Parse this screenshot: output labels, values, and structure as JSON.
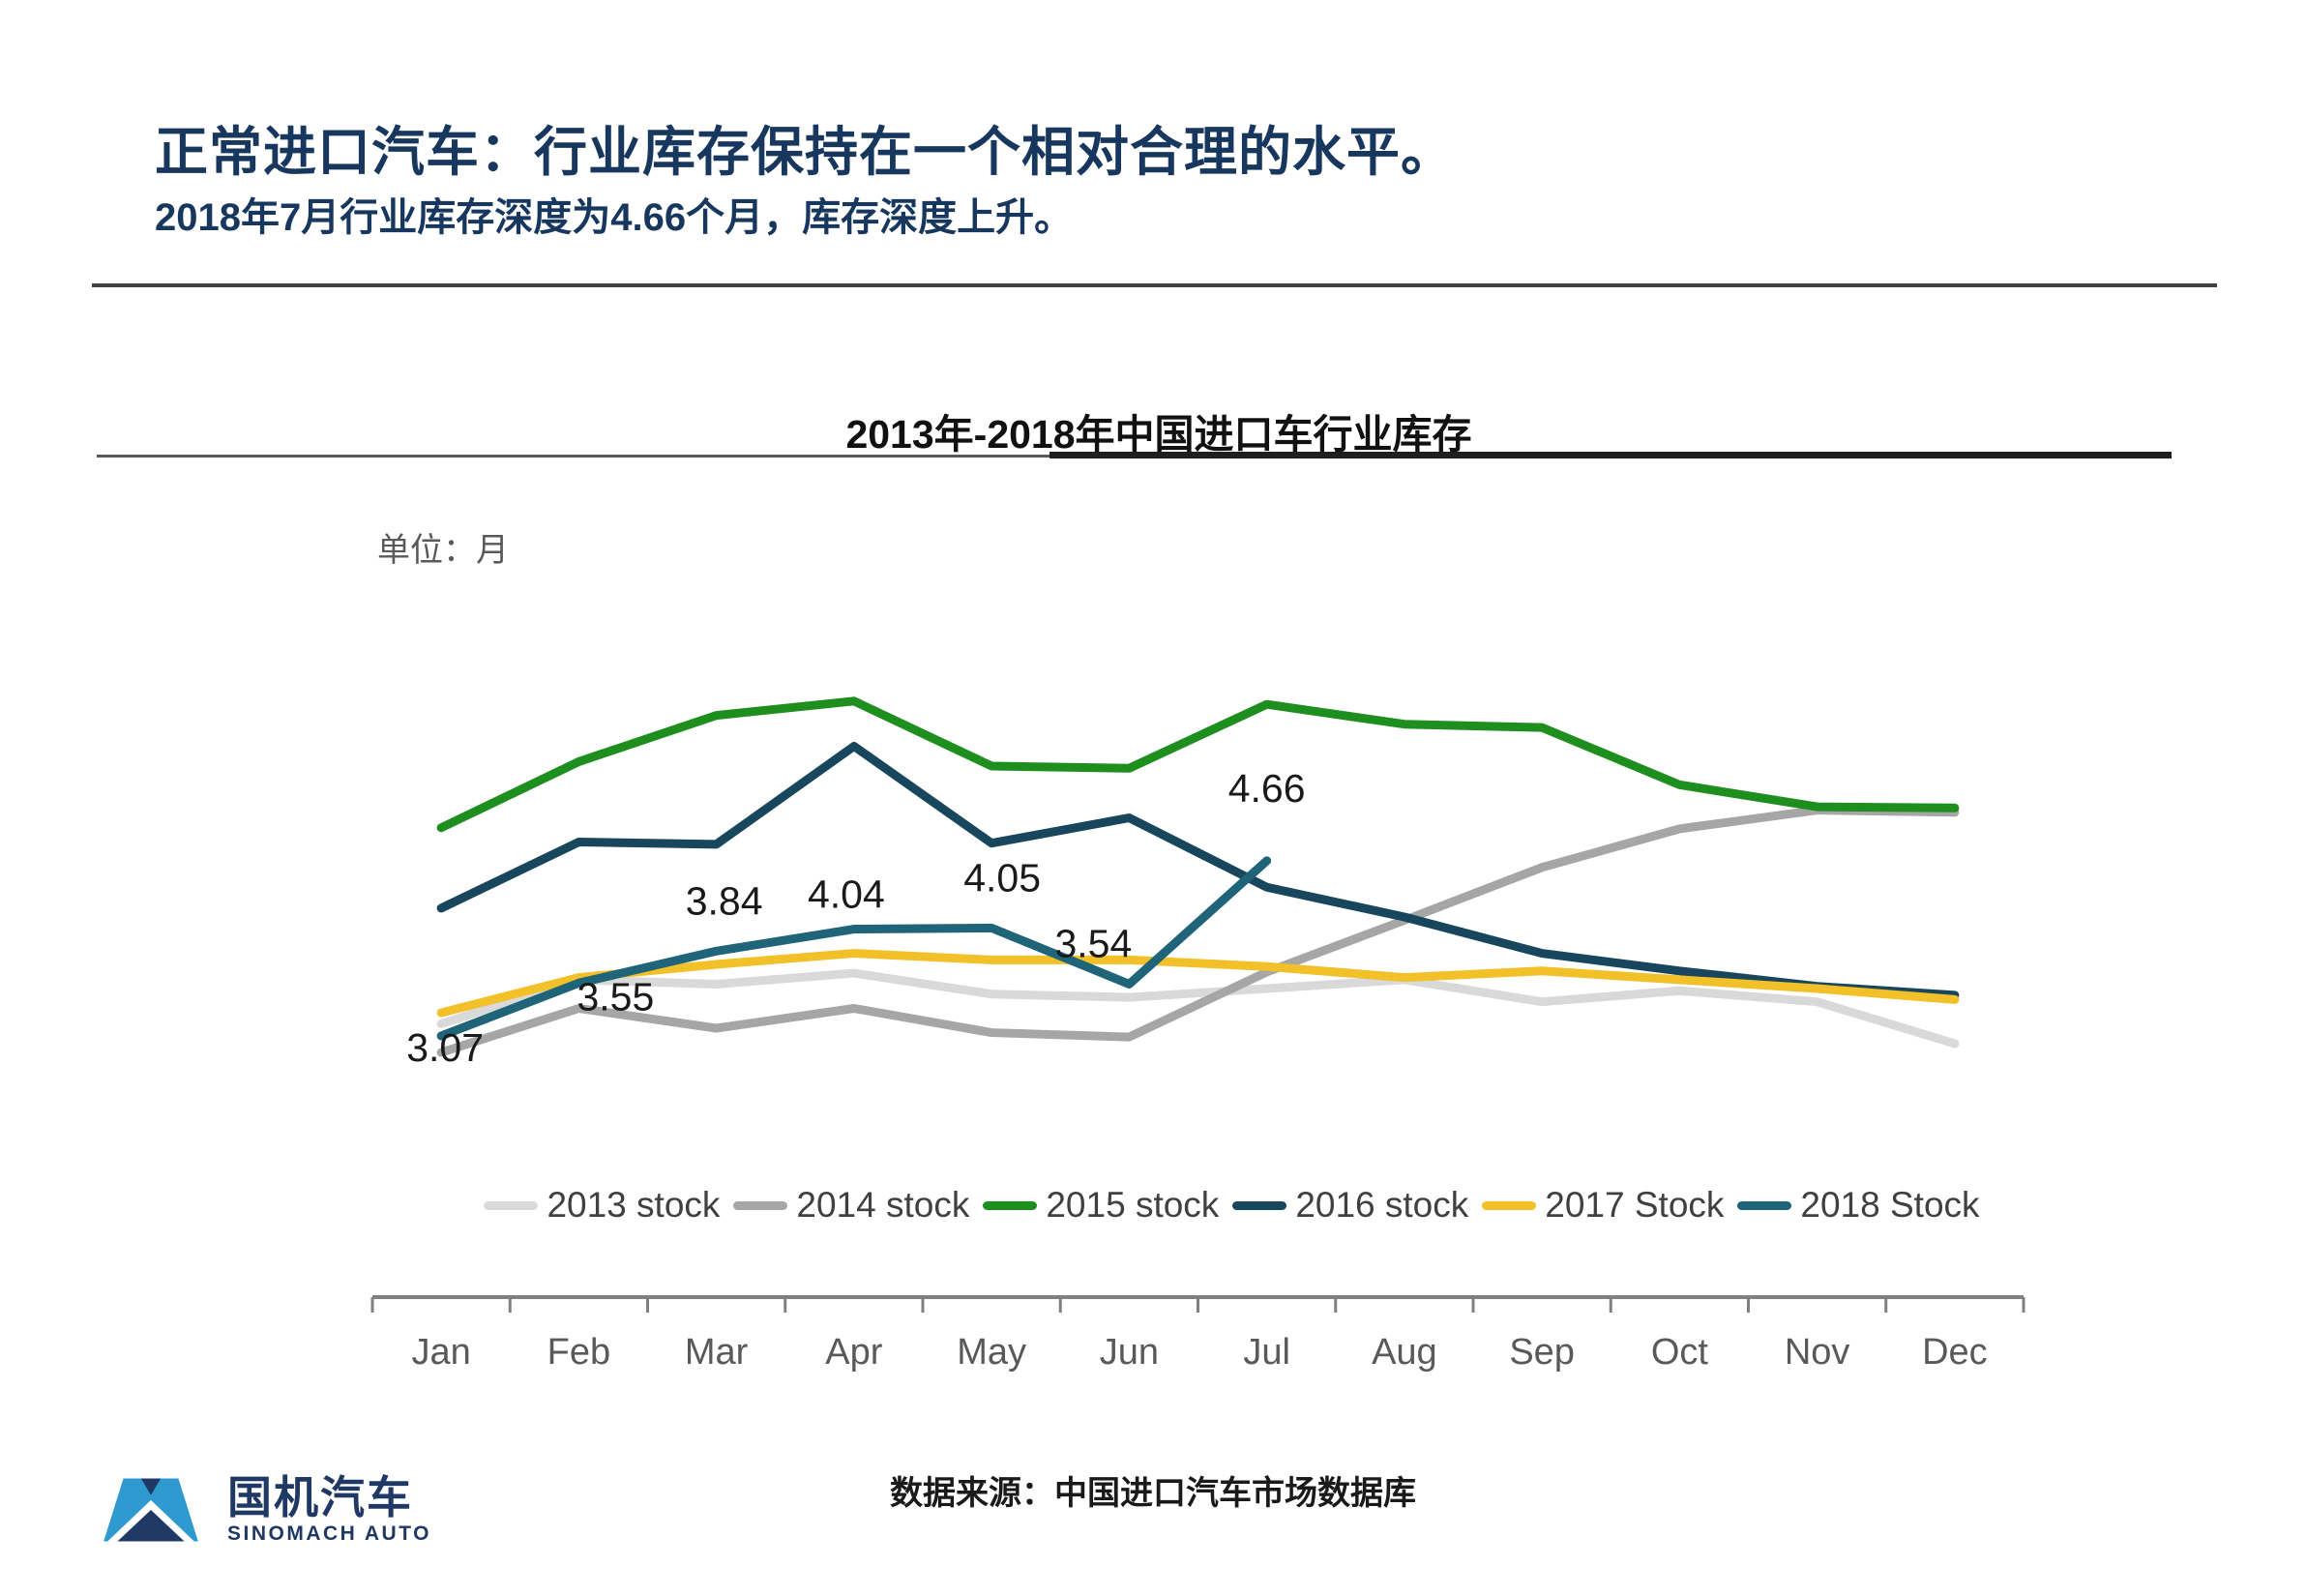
{
  "header": {
    "title": "正常进口汽车：行业库存保持在一个相对合理的水平。",
    "subtitle": "2018年7月行业库存深度为4.66个月，库存深度上升。"
  },
  "chart_data": {
    "type": "line",
    "title": "2013年-2018年中国进口车行业库存",
    "unit_label": "单位：月",
    "categories": [
      "Jan",
      "Feb",
      "Mar",
      "Apr",
      "May",
      "Jun",
      "Jul",
      "Aug",
      "Sep",
      "Oct",
      "Nov",
      "Dec"
    ],
    "series": [
      {
        "name": "2013 stock",
        "color": "#D9D9D9",
        "values": [
          3.18,
          3.58,
          3.54,
          3.64,
          3.45,
          3.42,
          3.5,
          3.58,
          3.38,
          3.48,
          3.38,
          3.0
        ]
      },
      {
        "name": "2014 stock",
        "color": "#A6A6A6",
        "values": [
          2.92,
          3.32,
          3.14,
          3.32,
          3.1,
          3.06,
          3.65,
          4.12,
          4.6,
          4.95,
          5.12,
          5.1
        ]
      },
      {
        "name": "2015 stock",
        "color": "#1E8F1E",
        "values": [
          4.96,
          5.56,
          5.98,
          6.11,
          5.52,
          5.5,
          6.08,
          5.9,
          5.87,
          5.35,
          5.15,
          5.14
        ]
      },
      {
        "name": "2016 stock",
        "color": "#17465D",
        "values": [
          4.23,
          4.83,
          4.81,
          5.7,
          4.82,
          5.05,
          4.42,
          4.15,
          3.82,
          3.66,
          3.52,
          3.44
        ]
      },
      {
        "name": "2017 Stock",
        "color": "#F2C029",
        "values": [
          3.28,
          3.6,
          3.72,
          3.82,
          3.76,
          3.76,
          3.7,
          3.6,
          3.66,
          3.58,
          3.5,
          3.4
        ]
      },
      {
        "name": "2018 Stock",
        "color": "#1F6478",
        "data_labels": true,
        "values": [
          3.07,
          3.55,
          3.84,
          4.04,
          4.05,
          3.54,
          4.66
        ]
      }
    ],
    "data_label_values": [
      "3.07",
      "3.55",
      "3.84",
      "4.04",
      "4.05",
      "3.54",
      "4.66"
    ],
    "ylim": [
      2.6,
      6.6
    ],
    "grid": false,
    "legend_position": "bottom"
  },
  "colors": {
    "title_navy": "#17375E",
    "divider": "#404040",
    "axis_gray": "#808080",
    "tick_label_gray": "#595959",
    "data_label_black": "#1a1a1a",
    "logo_navy": "#203864",
    "logo_light_blue": "#2E9AD0"
  },
  "footer": {
    "source": "数据来源：中国进口汽车市场数据库"
  },
  "logo": {
    "name_cn": "国机汽车",
    "name_en": "SINOMACH AUTO"
  }
}
